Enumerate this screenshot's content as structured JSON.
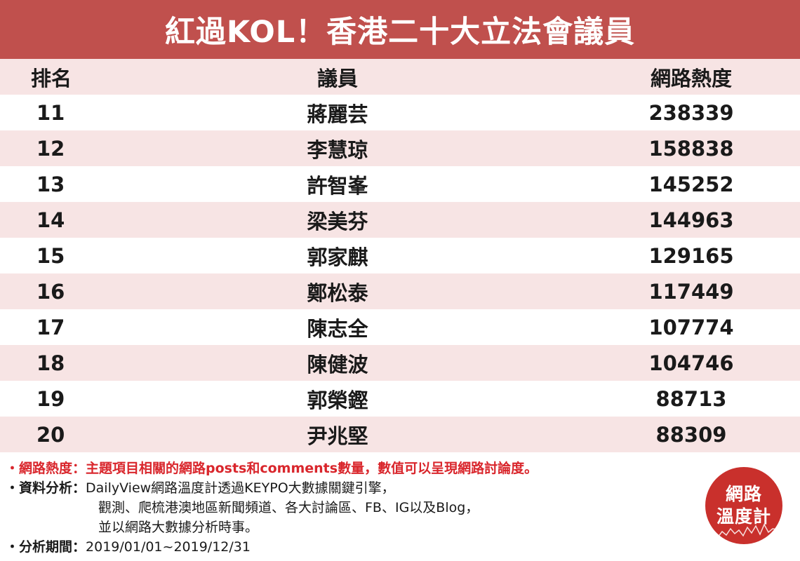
{
  "title": "紅過KOL！香港二十大立法會議員",
  "table": {
    "headers": {
      "rank": "排名",
      "name": "議員",
      "heat": "網路熱度"
    },
    "rows": [
      {
        "rank": "11",
        "name": "蔣麗芸",
        "heat": "238339"
      },
      {
        "rank": "12",
        "name": "李慧琼",
        "heat": "158838"
      },
      {
        "rank": "13",
        "name": "許智峯",
        "heat": "145252"
      },
      {
        "rank": "14",
        "name": "梁美芬",
        "heat": "144963"
      },
      {
        "rank": "15",
        "name": "郭家麒",
        "heat": "129165"
      },
      {
        "rank": "16",
        "name": "鄭松泰",
        "heat": "117449"
      },
      {
        "rank": "17",
        "name": "陳志全",
        "heat": "107774"
      },
      {
        "rank": "18",
        "name": "陳健波",
        "heat": "104746"
      },
      {
        "rank": "19",
        "name": "郭榮鏗",
        "heat": "88713"
      },
      {
        "rank": "20",
        "name": "尹兆堅",
        "heat": "88309"
      }
    ]
  },
  "notes": {
    "heat_definition": "・網路熱度：主題項目相關的網路posts和comments數量，數值可以呈現網路討論度。",
    "analysis_label": "・資料分析：",
    "analysis_line1": "DailyView網路溫度計透過KEYPO大數據關鍵引擎，",
    "analysis_line2": "觀測、爬梳港澳地區新聞頻道、各大討論區、FB、IG以及Blog，",
    "analysis_line3": "並以網路大數據分析時事。",
    "period_label": "・分析期間：",
    "period_value": "2019/01/01~2019/12/31"
  },
  "logo": {
    "line1": "網路",
    "line2": "溫度計",
    "bg_color": "#c9302c"
  },
  "colors": {
    "title_bar": "#c0504d",
    "row_shade": "#f7e4e4",
    "note_red": "#d9262c"
  }
}
